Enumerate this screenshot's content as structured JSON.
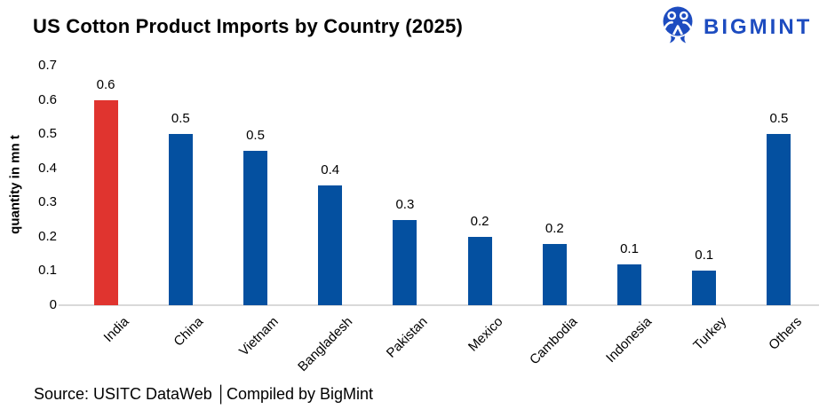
{
  "header": {
    "brand": "BIGMINT",
    "brand_color": "#1d4cc0",
    "logo_icon": "bigmint-people-icon"
  },
  "chart_data": {
    "type": "bar",
    "title": "US Cotton Product Imports by Country (2025)",
    "xlabel": "",
    "ylabel": "quantity in mn t",
    "ylim": [
      0,
      0.7
    ],
    "ytick_values": [
      0,
      0.1,
      0.2,
      0.3,
      0.4,
      0.5,
      0.6,
      0.7
    ],
    "ytick_labels": [
      "0",
      "0.1",
      "0.2",
      "0.3",
      "0.4",
      "0.5",
      "0.6",
      "0.7"
    ],
    "categories": [
      "India",
      "China",
      "Vietnam",
      "Bangladesh",
      "Pakistan",
      "Mexico",
      "Cambodia",
      "Indonesia",
      "Turkey",
      "Others"
    ],
    "values": [
      0.6,
      0.5,
      0.45,
      0.35,
      0.25,
      0.2,
      0.18,
      0.12,
      0.1,
      0.5
    ],
    "data_labels": [
      "0.6",
      "0.5",
      "0.5",
      "0.4",
      "0.3",
      "0.2",
      "0.2",
      "0.1",
      "0.1",
      "0.5"
    ],
    "highlight_index": 0,
    "highlight_category": "India",
    "bar_color_default": "#0450a0",
    "bar_color_highlight": "#e0342f",
    "axis_line_color": "#d9d9d9",
    "grid": false,
    "legend": false
  },
  "footer": {
    "source": "Source: USITC DataWeb │Compiled by BigMint"
  }
}
